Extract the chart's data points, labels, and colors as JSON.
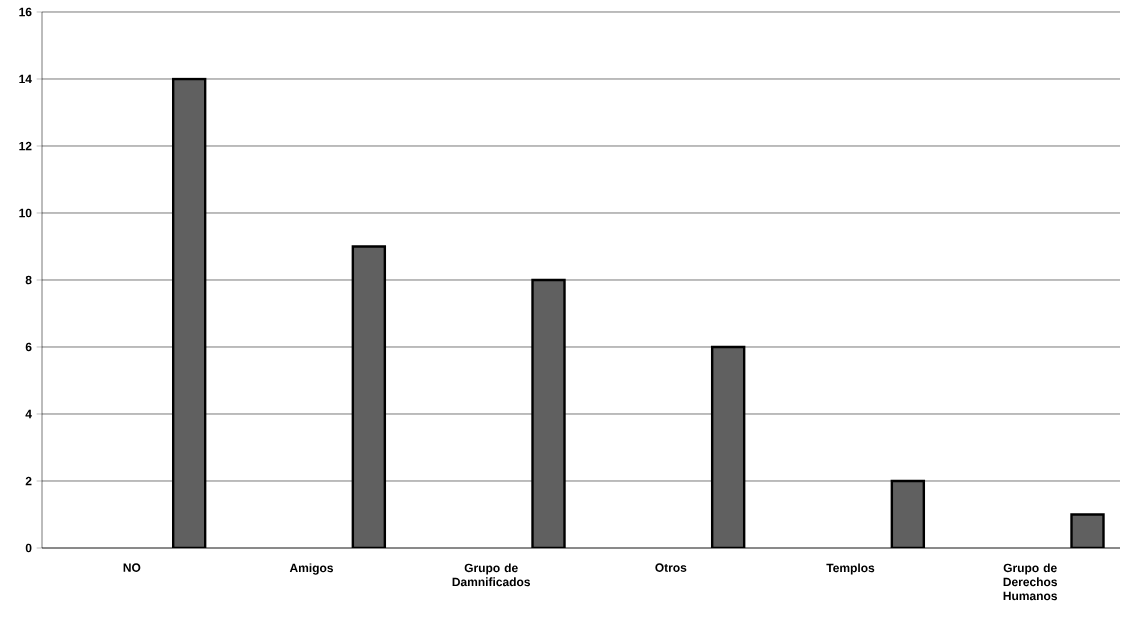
{
  "chart_data": {
    "type": "bar",
    "categories": [
      "NO",
      "Amigos",
      "Grupo de Damnificados",
      "Otros",
      "Templos",
      "Grupo de Derechos Humanos"
    ],
    "values": [
      14,
      9,
      8,
      6,
      2,
      1
    ],
    "color": "#606060",
    "ylim": [
      0,
      16
    ],
    "yticks": [
      0,
      2,
      4,
      6,
      8,
      10,
      12,
      14,
      16
    ],
    "grid": "y"
  }
}
